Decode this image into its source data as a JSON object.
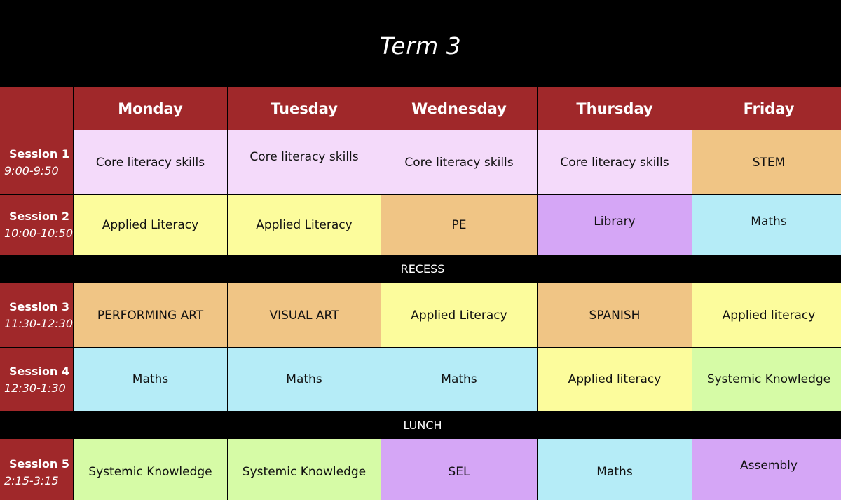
{
  "title": "Term 3",
  "days": [
    "Monday",
    "Tuesday",
    "Wednesday",
    "Thursday",
    "Friday"
  ],
  "colors": {
    "header": "#a0282a",
    "core": "#f4dafa",
    "yellow": "#fcfc9c",
    "orange": "#f0c585",
    "purple": "#d5a6f6",
    "blue": "#b5ecf7",
    "green": "#d6fba6",
    "break": "#000000"
  },
  "rows": [
    {
      "type": "session",
      "name": "Session 1",
      "time": "9:00-9:50",
      "cells": [
        {
          "text": "Core literacy skills",
          "color": "#f4dafa",
          "raise": false
        },
        {
          "text": "Core literacy skills",
          "color": "#f4dafa",
          "raise": true
        },
        {
          "text": "Core literacy skills",
          "color": "#f4dafa",
          "raise": false
        },
        {
          "text": "Core literacy skills",
          "color": "#f4dafa",
          "raise": false
        },
        {
          "text": "STEM",
          "color": "#f0c585",
          "raise": false
        }
      ]
    },
    {
      "type": "session",
      "name": "Session 2",
      "time": "10:00-10:50",
      "cells": [
        {
          "text": "Applied Literacy",
          "color": "#fcfc9c",
          "raise": false
        },
        {
          "text": "Applied Literacy",
          "color": "#fcfc9c",
          "raise": false
        },
        {
          "text": "PE",
          "color": "#f0c585",
          "raise": false
        },
        {
          "text": "Library",
          "color": "#d5a6f6",
          "raise": true
        },
        {
          "text": "Maths",
          "color": "#b5ecf7",
          "raise": true
        }
      ]
    },
    {
      "type": "break",
      "label": "RECESS"
    },
    {
      "type": "session",
      "name": "Session 3",
      "time": "11:30-12:30",
      "cells": [
        {
          "text": "PERFORMING ART",
          "color": "#f0c585",
          "raise": false
        },
        {
          "text": "VISUAL ART",
          "color": "#f0c585",
          "raise": false
        },
        {
          "text": "Applied Literacy",
          "color": "#fcfc9c",
          "raise": false
        },
        {
          "text": "SPANISH",
          "color": "#f0c585",
          "raise": false
        },
        {
          "text": "Applied literacy",
          "color": "#fcfc9c",
          "raise": false
        }
      ]
    },
    {
      "type": "session",
      "name": "Session 4",
      "time": "12:30-1:30",
      "cells": [
        {
          "text": "Maths",
          "color": "#b5ecf7",
          "raise": false
        },
        {
          "text": "Maths",
          "color": "#b5ecf7",
          "raise": false
        },
        {
          "text": "Maths",
          "color": "#b5ecf7",
          "raise": false
        },
        {
          "text": "Applied literacy",
          "color": "#fcfc9c",
          "raise": false
        },
        {
          "text": "Systemic Knowledge",
          "color": "#d6fba6",
          "raise": false
        }
      ]
    },
    {
      "type": "break",
      "label": "LUNCH"
    },
    {
      "type": "session",
      "name": "Session 5",
      "time": "2:15-3:15",
      "cells": [
        {
          "text": "Systemic Knowledge",
          "color": "#d6fba6",
          "raise": false
        },
        {
          "text": "Systemic Knowledge",
          "color": "#d6fba6",
          "raise": false
        },
        {
          "text": "SEL",
          "color": "#d5a6f6",
          "raise": false
        },
        {
          "text": "Maths",
          "color": "#b5ecf7",
          "raise": false
        },
        {
          "text": "Assembly",
          "color": "#d5a6f6",
          "raise": true
        }
      ]
    }
  ]
}
